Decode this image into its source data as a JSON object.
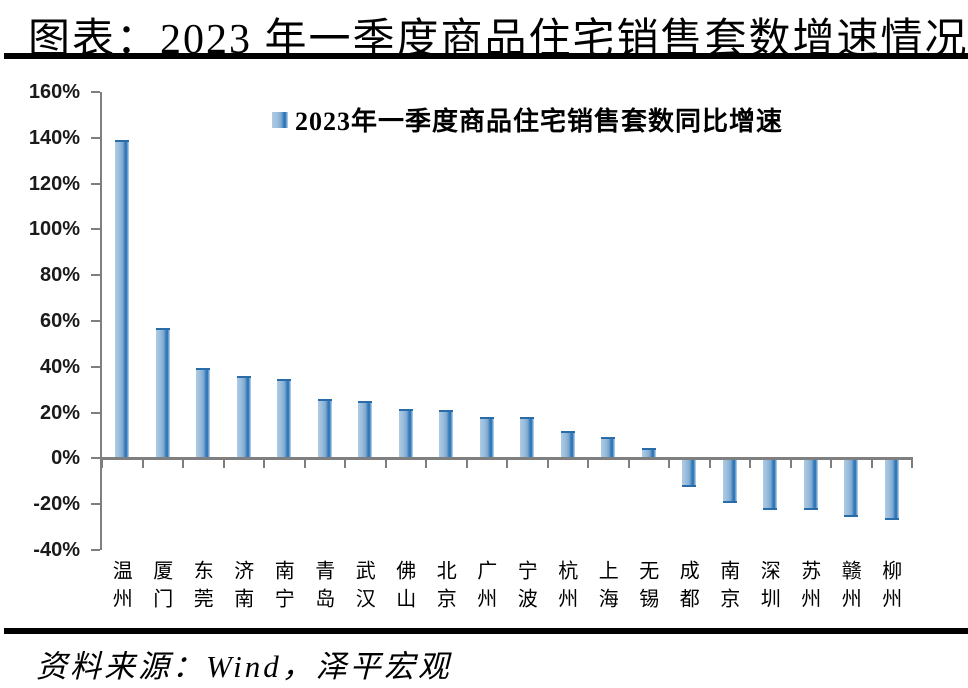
{
  "page": {
    "title": "图表：2023 年一季度商品住宅销售套数增速情况",
    "source": "资料来源：Wind，泽平宏观"
  },
  "chart_data": {
    "type": "bar",
    "title": "图表：2023 年一季度商品住宅销售套数增速情况",
    "legend": [
      "2023年一季度商品住宅销售套数同比增速"
    ],
    "legend_position": "top-center",
    "categories": [
      "温州",
      "厦门",
      "东莞",
      "济南",
      "南宁",
      "青岛",
      "武汉",
      "佛山",
      "北京",
      "广州",
      "宁波",
      "杭州",
      "上海",
      "无锡",
      "成都",
      "南京",
      "深圳",
      "苏州",
      "赣州",
      "柳州"
    ],
    "values": [
      139,
      57,
      39.5,
      36,
      34.5,
      26,
      25,
      21.5,
      21,
      18,
      18,
      12,
      9.5,
      4.5,
      -12.5,
      -19.5,
      -22.5,
      -22.5,
      -25.5,
      -27
    ],
    "unit": "%",
    "ylim": [
      -40,
      160
    ],
    "ytick_step": 20,
    "yticks": [
      "160%",
      "140%",
      "120%",
      "100%",
      "80%",
      "60%",
      "40%",
      "20%",
      "0%",
      "-20%",
      "-40%"
    ],
    "grid": false,
    "colors": {
      "bar_light": "#aecbe5",
      "bar_dark": "#2e75b6",
      "axis": "#7f7f7f",
      "rule": "#000000"
    }
  }
}
